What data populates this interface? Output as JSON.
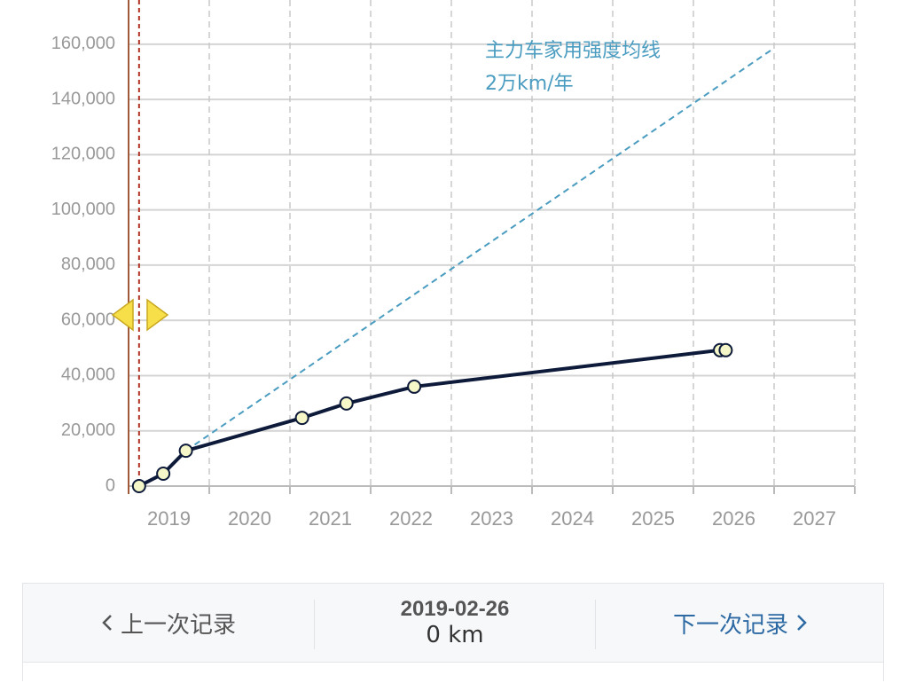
{
  "chart_data": {
    "type": "line",
    "xlim": [
      2019,
      2028
    ],
    "ylim": [
      0,
      176000
    ],
    "xticks": [
      {
        "value": 2019.5,
        "label": "2019"
      },
      {
        "value": 2020.5,
        "label": "2020"
      },
      {
        "value": 2021.5,
        "label": "2021"
      },
      {
        "value": 2022.5,
        "label": "2022"
      },
      {
        "value": 2023.5,
        "label": "2023"
      },
      {
        "value": 2024.5,
        "label": "2024"
      },
      {
        "value": 2025.5,
        "label": "2025"
      },
      {
        "value": 2026.5,
        "label": "2026"
      },
      {
        "value": 2027.5,
        "label": "2027"
      }
    ],
    "x_gridlines": [
      2020,
      2021,
      2022,
      2023,
      2024,
      2025,
      2026,
      2027,
      2028
    ],
    "yticks": [
      0,
      {
        "value": 20000,
        "label": "20,000"
      },
      {
        "value": 40000,
        "label": "40,000"
      },
      {
        "value": 60000,
        "label": "60,000"
      },
      {
        "value": 80000,
        "label": "80,000"
      },
      {
        "value": 100000,
        "label": "100,000"
      },
      {
        "value": 120000,
        "label": "120,000"
      },
      {
        "value": 140000,
        "label": "140,000"
      },
      {
        "value": 160000,
        "label": "160,000"
      }
    ],
    "grid": true,
    "series": [
      {
        "color": "#0d1a3a",
        "x": [
          2019.13,
          2019.43,
          2019.71,
          2021.15,
          2021.7,
          2022.54,
          2026.33,
          2026.4
        ],
        "values": [
          0,
          4500,
          12800,
          24700,
          29900,
          36000,
          49200,
          49200
        ]
      },
      {
        "color": "#4a9cc0",
        "dashed": true,
        "x": [
          2019.71,
          2027
        ],
        "values": [
          12800,
          158600
        ]
      }
    ],
    "annotation": [
      "主力车家用强度均线",
      "2万km/年"
    ]
  },
  "record_nav": {
    "previous": "上一次记录",
    "date": "2019-02-26",
    "mileage": "0 km",
    "next": "下一次记录"
  }
}
